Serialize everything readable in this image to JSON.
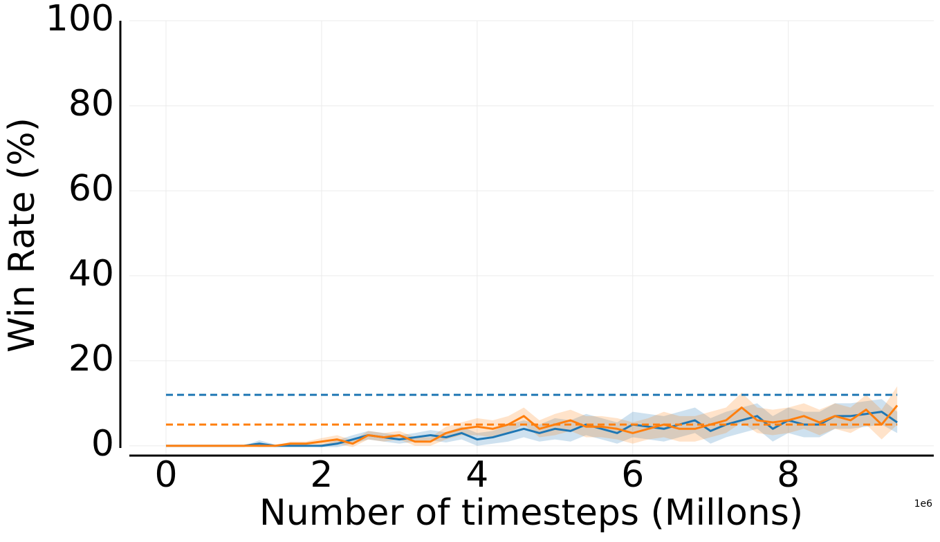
{
  "chart_data": {
    "type": "line",
    "xlabel": "Number of timesteps (Millons)",
    "ylabel": "Win Rate (%)",
    "x_offset_label": "1e6",
    "x": [
      0,
      0.2,
      0.4,
      0.6,
      0.8,
      1.0,
      1.2,
      1.4,
      1.6,
      1.8,
      2.0,
      2.2,
      2.4,
      2.6,
      2.8,
      3.0,
      3.2,
      3.4,
      3.6,
      3.8,
      4.0,
      4.2,
      4.4,
      4.6,
      4.8,
      5.0,
      5.2,
      5.4,
      5.6,
      5.8,
      6.0,
      6.2,
      6.4,
      6.6,
      6.8,
      7.0,
      7.2,
      7.4,
      7.6,
      7.8,
      8.0,
      8.2,
      8.4,
      8.6,
      8.8,
      9.0,
      9.2,
      9.4
    ],
    "series": [
      {
        "color": "#1f77b4",
        "values": [
          0,
          0,
          0,
          0,
          0,
          0,
          0.5,
          0,
          0,
          0,
          0,
          0.5,
          1.5,
          2.5,
          2,
          1.5,
          2,
          2.5,
          2,
          3,
          1.5,
          2,
          3,
          4,
          3,
          4,
          3.5,
          5,
          4,
          3,
          5,
          4.5,
          4,
          5,
          6,
          3.5,
          5,
          6,
          7,
          4,
          6,
          5,
          5,
          7,
          7,
          7.5,
          8,
          5.5
        ],
        "errors": [
          0,
          0,
          0,
          0,
          0,
          0,
          0.8,
          0.3,
          0,
          0,
          0.3,
          0.8,
          1,
          1,
          1,
          1,
          1,
          1.2,
          1.2,
          1.5,
          1.5,
          1.5,
          2,
          2,
          2,
          2.5,
          2.5,
          2.5,
          2.5,
          2.5,
          3,
          3,
          3,
          3,
          3,
          3,
          3,
          3,
          3,
          3,
          3,
          3,
          3,
          3,
          3,
          3,
          3,
          2.5
        ]
      },
      {
        "color": "#ff7f0e",
        "values": [
          0,
          0,
          0,
          0,
          0,
          0,
          0,
          0,
          0.5,
          0.5,
          1,
          1.5,
          0.5,
          2.5,
          2,
          2.5,
          1,
          1,
          3,
          4,
          4.5,
          4,
          5,
          7,
          4,
          5,
          6,
          4.5,
          4.5,
          4,
          3,
          4,
          5,
          4,
          4,
          5,
          6,
          9,
          6,
          5.5,
          6,
          7,
          5.5,
          7,
          6,
          8.5,
          5,
          9.5
        ],
        "errors": [
          0,
          0,
          0,
          0,
          0,
          0,
          0,
          0,
          0.5,
          0.5,
          0.8,
          1,
          0.8,
          1,
          1,
          1,
          1,
          1,
          1.5,
          1.5,
          2,
          2,
          2,
          2,
          2,
          2.5,
          2.5,
          2.5,
          2.5,
          2.5,
          2.5,
          2.5,
          3,
          3,
          3,
          3,
          3,
          3.5,
          3,
          3,
          3,
          3,
          3,
          3,
          3,
          3.5,
          3.5,
          4.5
        ]
      }
    ],
    "hlines": [
      {
        "value": 12,
        "color": "#1f77b4"
      },
      {
        "value": 5,
        "color": "#ff7f0e"
      }
    ],
    "xlim": [
      -0.587,
      9.87
    ],
    "ylim": [
      -2.3,
      100
    ],
    "xticks": [
      0,
      2,
      4,
      6,
      8
    ],
    "yticks": [
      0,
      20,
      40,
      60,
      80,
      100
    ],
    "grid": true
  }
}
